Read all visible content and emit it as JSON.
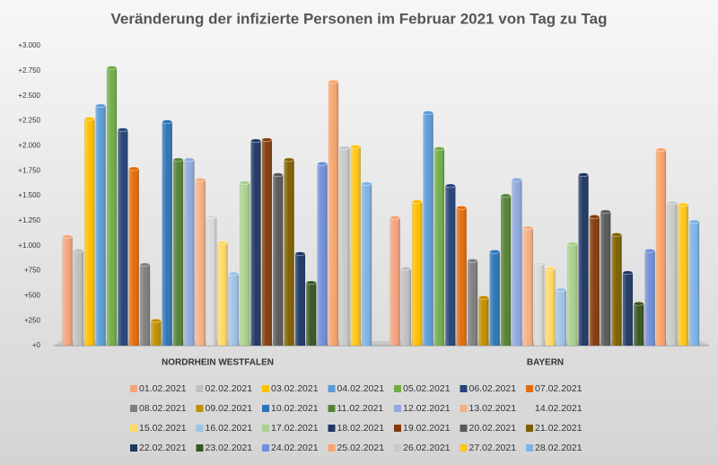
{
  "chart_data": {
    "type": "bar",
    "title": "Veränderung der infizierte Personen im Februar 2021 von Tag zu Tag",
    "categories": [
      "NORDRHEIN WESTFALEN",
      "BAYERN"
    ],
    "ylim": [
      0,
      3000
    ],
    "yticks": [
      {
        "value": 0,
        "label": "+0"
      },
      {
        "value": 250,
        "label": "+250"
      },
      {
        "value": 500,
        "label": "+500"
      },
      {
        "value": 750,
        "label": "+750"
      },
      {
        "value": 1000,
        "label": "+1.000"
      },
      {
        "value": 1250,
        "label": "+1.250"
      },
      {
        "value": 1500,
        "label": "+1.500"
      },
      {
        "value": 1750,
        "label": "+1.750"
      },
      {
        "value": 2000,
        "label": "+2.000"
      },
      {
        "value": 2250,
        "label": "+2.250"
      },
      {
        "value": 2500,
        "label": "+2.500"
      },
      {
        "value": 2750,
        "label": "+2.750"
      },
      {
        "value": 3000,
        "label": "+3.000"
      }
    ],
    "grid": false,
    "legend": "bottom",
    "series": [
      {
        "name": "01.02.2021",
        "color": "#f4a47c",
        "values": [
          1090,
          1280
        ]
      },
      {
        "name": "02.02.2021",
        "color": "#bfbfbf",
        "values": [
          950,
          770
        ]
      },
      {
        "name": "03.02.2021",
        "color": "#ffc000",
        "values": [
          2270,
          1440
        ]
      },
      {
        "name": "04.02.2021",
        "color": "#5b9bd5",
        "values": [
          2400,
          2330
        ]
      },
      {
        "name": "05.02.2021",
        "color": "#70ad47",
        "values": [
          2780,
          1970
        ]
      },
      {
        "name": "06.02.2021",
        "color": "#264478",
        "values": [
          2160,
          1600
        ]
      },
      {
        "name": "07.02.2021",
        "color": "#e46c0a",
        "values": [
          1770,
          1380
        ]
      },
      {
        "name": "08.02.2021",
        "color": "#7f7f7f",
        "values": [
          810,
          850
        ]
      },
      {
        "name": "09.02.2021",
        "color": "#bf9000",
        "values": [
          250,
          480
        ]
      },
      {
        "name": "10.02.2021",
        "color": "#2e75b6",
        "values": [
          2240,
          940
        ]
      },
      {
        "name": "11.02.2021",
        "color": "#548235",
        "values": [
          1860,
          1500
        ]
      },
      {
        "name": "12.02.2021",
        "color": "#8faadc",
        "values": [
          1860,
          1660
        ]
      },
      {
        "name": "13.02.2021",
        "color": "#f4b183",
        "values": [
          1660,
          1180
        ]
      },
      {
        "name": "14.02.2021",
        "color": "#d9d9d9",
        "values": [
          1290,
          820
        ]
      },
      {
        "name": "15.02.2021",
        "color": "#ffd966",
        "values": [
          1030,
          770
        ]
      },
      {
        "name": "16.02.2021",
        "color": "#9dc3e6",
        "values": [
          720,
          560
        ]
      },
      {
        "name": "17.02.2021",
        "color": "#a9d18e",
        "values": [
          1630,
          1020
        ]
      },
      {
        "name": "18.02.2021",
        "color": "#203864",
        "values": [
          2050,
          1710
        ]
      },
      {
        "name": "19.02.2021",
        "color": "#843c0c",
        "values": [
          2060,
          1290
        ]
      },
      {
        "name": "20.02.2021",
        "color": "#595959",
        "values": [
          1710,
          1340
        ]
      },
      {
        "name": "21.02.2021",
        "color": "#7f6000",
        "values": [
          1860,
          1110
        ]
      },
      {
        "name": "22.02.2021",
        "color": "#1f3864",
        "values": [
          920,
          730
        ]
      },
      {
        "name": "23.02.2021",
        "color": "#375623",
        "values": [
          630,
          420
        ]
      },
      {
        "name": "24.02.2021",
        "color": "#6f8fd8",
        "values": [
          1820,
          950
        ]
      },
      {
        "name": "25.02.2021",
        "color": "#f8a46c",
        "values": [
          2640,
          1960
        ]
      },
      {
        "name": "26.02.2021",
        "color": "#c9c9c9",
        "values": [
          1980,
          1430
        ]
      },
      {
        "name": "27.02.2021",
        "color": "#ffc61a",
        "values": [
          1990,
          1410
        ]
      },
      {
        "name": "28.02.2021",
        "color": "#7fb2e5",
        "values": [
          1620,
          1240
        ]
      }
    ]
  }
}
